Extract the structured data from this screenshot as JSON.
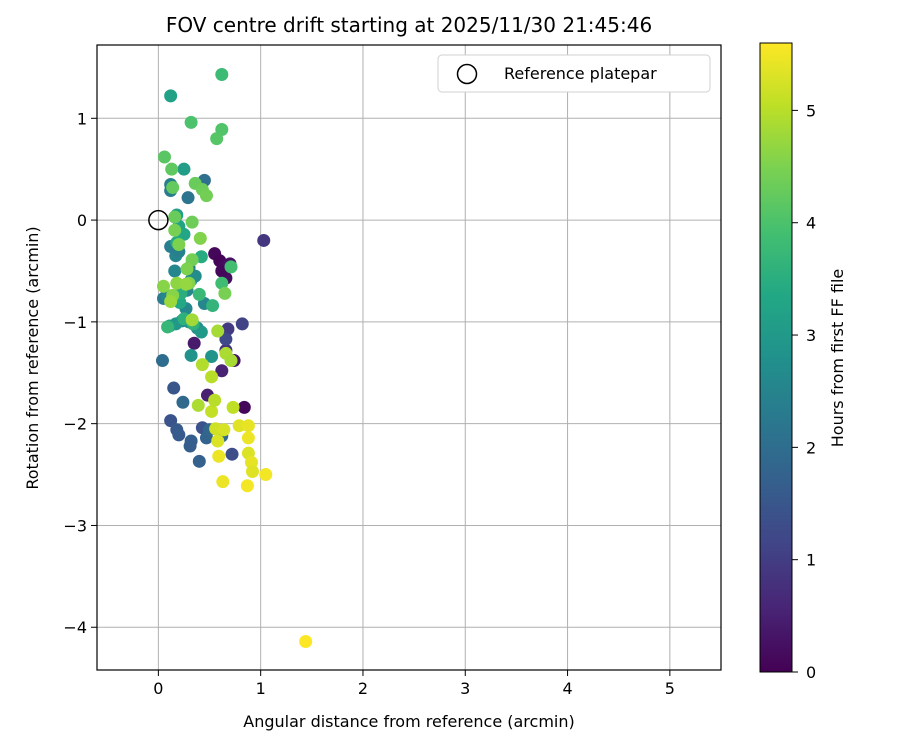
{
  "chart_data": {
    "type": "scatter",
    "title": "FOV centre drift starting at 2025/11/30 21:45:46",
    "xlabel": "Angular distance from reference (arcmin)",
    "ylabel": "Rotation from reference (arcmin)",
    "xlim": [
      -0.6,
      5.5
    ],
    "ylim": [
      -4.42,
      1.72
    ],
    "xticks": [
      "0",
      "1",
      "2",
      "3",
      "4",
      "5"
    ],
    "xtick_values": [
      0,
      1,
      2,
      3,
      4,
      5
    ],
    "yticks": [
      "1",
      "0",
      "−1",
      "−2",
      "−3",
      "−4"
    ],
    "ytick_values": [
      1,
      0,
      -1,
      -2,
      -3,
      -4
    ],
    "grid": true,
    "legend": {
      "placement": "top-right",
      "entries": [
        "Reference platepar"
      ]
    },
    "reference_point": {
      "x": 0,
      "y": 0
    },
    "colorbar": {
      "label": "Hours from first FF file",
      "colormap": "viridis",
      "range": [
        0,
        5.6
      ],
      "ticks": [
        "0",
        "1",
        "2",
        "3",
        "4",
        "5"
      ],
      "tick_values": [
        0,
        1,
        2,
        3,
        4,
        5
      ]
    },
    "series": [
      {
        "points": [
          {
            "x": 0.55,
            "y": -0.33,
            "t": 0.1
          },
          {
            "x": 0.6,
            "y": -0.4,
            "t": 0.05
          },
          {
            "x": 0.65,
            "y": -0.45,
            "t": 0.15
          },
          {
            "x": 0.66,
            "y": -0.57,
            "t": 0.2
          },
          {
            "x": 0.62,
            "y": -0.5,
            "t": 0.1
          },
          {
            "x": 0.7,
            "y": -0.43,
            "t": 0.25
          },
          {
            "x": 0.84,
            "y": -1.84,
            "t": 0.1
          },
          {
            "x": 0.74,
            "y": -1.38,
            "t": 0.3
          },
          {
            "x": 0.35,
            "y": -1.21,
            "t": 0.4
          },
          {
            "x": 0.48,
            "y": -1.72,
            "t": 0.5
          },
          {
            "x": 0.62,
            "y": -1.48,
            "t": 0.55
          },
          {
            "x": 1.03,
            "y": -0.2,
            "t": 0.9
          },
          {
            "x": 0.66,
            "y": -1.28,
            "t": 0.8
          },
          {
            "x": 0.68,
            "y": -1.07,
            "t": 0.95
          },
          {
            "x": 0.82,
            "y": -1.02,
            "t": 1.1
          },
          {
            "x": 0.66,
            "y": -1.17,
            "t": 1.2
          },
          {
            "x": 0.72,
            "y": -2.3,
            "t": 1.3
          },
          {
            "x": 0.43,
            "y": -2.04,
            "t": 1.4
          },
          {
            "x": 0.15,
            "y": -1.65,
            "t": 1.5
          },
          {
            "x": 0.12,
            "y": -1.97,
            "t": 1.45
          },
          {
            "x": 0.18,
            "y": -2.06,
            "t": 1.55
          },
          {
            "x": 0.2,
            "y": -2.11,
            "t": 1.6
          },
          {
            "x": 0.32,
            "y": -2.17,
            "t": 1.7
          },
          {
            "x": 0.31,
            "y": -2.22,
            "t": 1.65
          },
          {
            "x": 0.4,
            "y": -2.37,
            "t": 1.75
          },
          {
            "x": 0.47,
            "y": -2.14,
            "t": 1.8
          },
          {
            "x": 0.24,
            "y": -1.79,
            "t": 1.9
          },
          {
            "x": 0.5,
            "y": -2.06,
            "t": 1.85
          },
          {
            "x": 0.62,
            "y": -2.12,
            "t": 1.95
          },
          {
            "x": 0.04,
            "y": -1.38,
            "t": 2.0
          },
          {
            "x": 0.45,
            "y": 0.39,
            "t": 2.05
          },
          {
            "x": 0.29,
            "y": 0.22,
            "t": 2.2
          },
          {
            "x": 0.12,
            "y": 0.29,
            "t": 2.3
          },
          {
            "x": 0.12,
            "y": 0.35,
            "t": 2.4
          },
          {
            "x": 0.17,
            "y": -0.35,
            "t": 2.5
          },
          {
            "x": 0.2,
            "y": -0.31,
            "t": 2.45
          },
          {
            "x": 0.12,
            "y": -0.26,
            "t": 2.35
          },
          {
            "x": 0.16,
            "y": -0.5,
            "t": 2.55
          },
          {
            "x": 0.28,
            "y": -0.69,
            "t": 2.6
          },
          {
            "x": 0.32,
            "y": -0.59,
            "t": 2.65
          },
          {
            "x": 0.36,
            "y": -0.55,
            "t": 2.7
          },
          {
            "x": 0.3,
            "y": -0.47,
            "t": 2.4
          },
          {
            "x": 0.05,
            "y": -0.77,
            "t": 2.3
          },
          {
            "x": 0.08,
            "y": -0.74,
            "t": 2.5
          },
          {
            "x": 0.45,
            "y": -0.82,
            "t": 2.55
          },
          {
            "x": 0.27,
            "y": -0.87,
            "t": 2.6
          },
          {
            "x": 0.38,
            "y": -1.06,
            "t": 2.7
          },
          {
            "x": 0.23,
            "y": -0.99,
            "t": 2.8
          },
          {
            "x": 0.3,
            "y": -1.0,
            "t": 2.75
          },
          {
            "x": 0.32,
            "y": -1.33,
            "t": 2.85
          },
          {
            "x": 0.52,
            "y": -1.34,
            "t": 2.9
          },
          {
            "x": 0.17,
            "y": -1.02,
            "t": 2.95
          },
          {
            "x": 0.42,
            "y": -1.1,
            "t": 3.0
          },
          {
            "x": 0.11,
            "y": -1.04,
            "t": 3.05
          },
          {
            "x": 0.12,
            "y": 1.22,
            "t": 3.2
          },
          {
            "x": 0.25,
            "y": 0.5,
            "t": 3.1
          },
          {
            "x": 0.18,
            "y": 0.05,
            "t": 3.15
          },
          {
            "x": 0.2,
            "y": -0.06,
            "t": 3.25
          },
          {
            "x": 0.25,
            "y": -0.14,
            "t": 3.3
          },
          {
            "x": 0.18,
            "y": -0.22,
            "t": 3.4
          },
          {
            "x": 0.42,
            "y": -0.36,
            "t": 3.45
          },
          {
            "x": 0.21,
            "y": -0.81,
            "t": 3.35
          },
          {
            "x": 0.22,
            "y": -0.72,
            "t": 3.5
          },
          {
            "x": 0.25,
            "y": -0.97,
            "t": 3.55
          },
          {
            "x": 0.34,
            "y": -1.02,
            "t": 3.6
          },
          {
            "x": 0.53,
            "y": -0.84,
            "t": 3.65
          },
          {
            "x": 0.09,
            "y": -1.05,
            "t": 3.7
          },
          {
            "x": 0.62,
            "y": 1.43,
            "t": 3.8
          },
          {
            "x": 0.4,
            "y": -0.73,
            "t": 3.75
          },
          {
            "x": 0.62,
            "y": -0.62,
            "t": 3.85
          },
          {
            "x": 0.71,
            "y": -0.46,
            "t": 3.9
          },
          {
            "x": 0.32,
            "y": 0.96,
            "t": 4.0
          },
          {
            "x": 0.62,
            "y": 0.89,
            "t": 4.05
          },
          {
            "x": 0.57,
            "y": 0.8,
            "t": 4.1
          },
          {
            "x": 0.06,
            "y": 0.62,
            "t": 4.15
          },
          {
            "x": 0.13,
            "y": 0.5,
            "t": 4.2
          },
          {
            "x": 0.14,
            "y": 0.32,
            "t": 4.25
          },
          {
            "x": 0.36,
            "y": 0.36,
            "t": 4.3
          },
          {
            "x": 0.43,
            "y": 0.3,
            "t": 4.35
          },
          {
            "x": 0.47,
            "y": 0.24,
            "t": 4.4
          },
          {
            "x": 0.16,
            "y": 0.03,
            "t": 4.3
          },
          {
            "x": 0.33,
            "y": -0.02,
            "t": 4.35
          },
          {
            "x": 0.16,
            "y": -0.1,
            "t": 4.45
          },
          {
            "x": 0.2,
            "y": -0.24,
            "t": 4.5
          },
          {
            "x": 0.41,
            "y": -0.18,
            "t": 4.55
          },
          {
            "x": 0.33,
            "y": -0.39,
            "t": 4.4
          },
          {
            "x": 0.28,
            "y": -0.48,
            "t": 4.5
          },
          {
            "x": 0.65,
            "y": -0.72,
            "t": 4.45
          },
          {
            "x": 0.05,
            "y": -0.65,
            "t": 4.6
          },
          {
            "x": 0.18,
            "y": -0.62,
            "t": 4.65
          },
          {
            "x": 0.3,
            "y": -0.62,
            "t": 4.55
          },
          {
            "x": 0.27,
            "y": -0.63,
            "t": 4.7
          },
          {
            "x": 0.14,
            "y": -0.74,
            "t": 4.6
          },
          {
            "x": 0.12,
            "y": -0.8,
            "t": 4.75
          },
          {
            "x": 0.33,
            "y": -0.98,
            "t": 4.8
          },
          {
            "x": 0.58,
            "y": -1.09,
            "t": 4.85
          },
          {
            "x": 0.66,
            "y": -1.31,
            "t": 4.9
          },
          {
            "x": 0.71,
            "y": -1.38,
            "t": 4.85
          },
          {
            "x": 0.43,
            "y": -1.42,
            "t": 4.95
          },
          {
            "x": 0.52,
            "y": -1.54,
            "t": 5.0
          },
          {
            "x": 0.39,
            "y": -1.82,
            "t": 4.9
          },
          {
            "x": 0.73,
            "y": -1.84,
            "t": 5.05
          },
          {
            "x": 0.52,
            "y": -1.88,
            "t": 5.1
          },
          {
            "x": 0.55,
            "y": -1.77,
            "t": 5.0
          },
          {
            "x": 0.56,
            "y": -2.05,
            "t": 5.2
          },
          {
            "x": 0.58,
            "y": -2.17,
            "t": 5.3
          },
          {
            "x": 0.64,
            "y": -2.06,
            "t": 5.25
          },
          {
            "x": 0.79,
            "y": -2.02,
            "t": 5.35
          },
          {
            "x": 0.88,
            "y": -2.02,
            "t": 5.4
          },
          {
            "x": 0.88,
            "y": -2.14,
            "t": 5.45
          },
          {
            "x": 0.88,
            "y": -2.29,
            "t": 5.3
          },
          {
            "x": 0.91,
            "y": -2.38,
            "t": 5.4
          },
          {
            "x": 0.92,
            "y": -2.47,
            "t": 5.35
          },
          {
            "x": 0.59,
            "y": -2.32,
            "t": 5.45
          },
          {
            "x": 1.05,
            "y": -2.5,
            "t": 5.5
          },
          {
            "x": 0.63,
            "y": -2.57,
            "t": 5.45
          },
          {
            "x": 0.87,
            "y": -2.61,
            "t": 5.5
          },
          {
            "x": 1.44,
            "y": -4.14,
            "t": 5.6
          }
        ]
      }
    ]
  }
}
